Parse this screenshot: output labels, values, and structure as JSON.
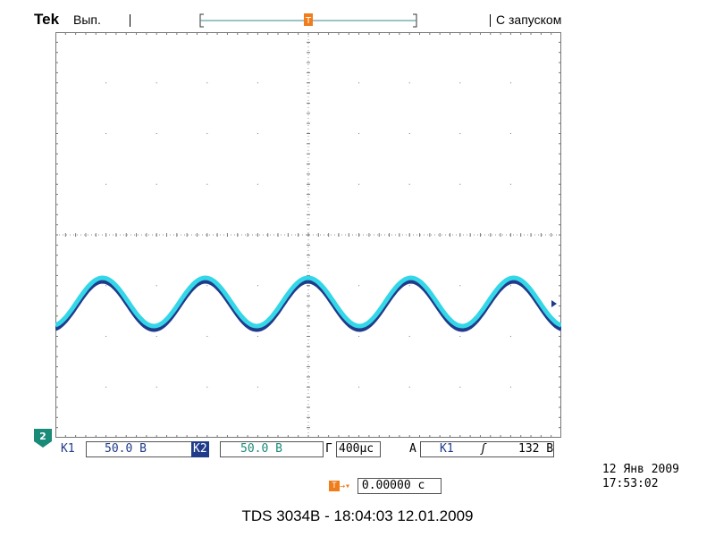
{
  "header": {
    "brand": "Tek",
    "acq_state": "Вып.",
    "trigger_mode": "С запуском"
  },
  "scope": {
    "ch2_marker": "2",
    "trigger_label": "T",
    "channel_bar": {
      "ch1_label": "К1",
      "ch1_scale": "50.0 В",
      "ch2_label": "К2",
      "ch2_scale": "50.0 В",
      "horiz_prefix": "Г",
      "timebase": "400µc",
      "trig_prefix": "A",
      "trig_source": "К1",
      "trig_slope": "ʃ",
      "trig_level": "132 В"
    },
    "date": "12 Янв  2009",
    "time": "17:53:02",
    "trigger_offset": "0.00000 c"
  },
  "caption": "TDS 3034B - 18:04:03   12.01.2009",
  "colors": {
    "ch1": "#1f3b8a",
    "ch2": "#34d7e8",
    "trigger": "#f07c1a",
    "grid": "#888888"
  }
}
